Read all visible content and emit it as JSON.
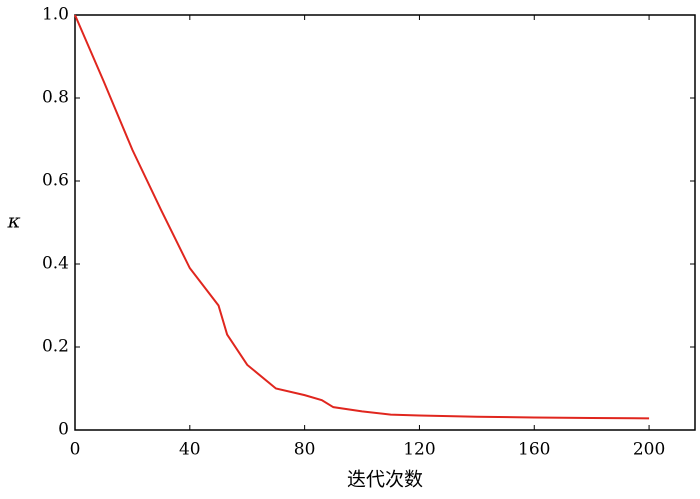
{
  "chart_data": {
    "type": "line",
    "x_label": "迭代次数",
    "y_label": "κ",
    "x": [
      0,
      10,
      20,
      30,
      40,
      50,
      53,
      60,
      70,
      80,
      86,
      90,
      100,
      110,
      120,
      140,
      160,
      180,
      200
    ],
    "series": [
      {
        "name": "κ",
        "color": "#e0261e",
        "values": [
          1.0,
          0.84,
          0.675,
          0.53,
          0.39,
          0.3,
          0.23,
          0.157,
          0.1,
          0.084,
          0.072,
          0.055,
          0.045,
          0.037,
          0.035,
          0.032,
          0.03,
          0.029,
          0.028
        ]
      }
    ],
    "xlim": [
      0,
      216
    ],
    "xticks": [
      0,
      40,
      80,
      120,
      160,
      200
    ],
    "ylim": [
      0,
      1
    ],
    "yticks": [
      0,
      {
        "value": 0.2,
        "label": "0.2"
      },
      {
        "value": 0.4,
        "label": "0.4"
      },
      {
        "value": 0.6,
        "label": "0.6"
      },
      {
        "value": 0.8,
        "label": "0.8"
      },
      {
        "value": 1,
        "label": "1.0"
      }
    ],
    "grid": false
  }
}
